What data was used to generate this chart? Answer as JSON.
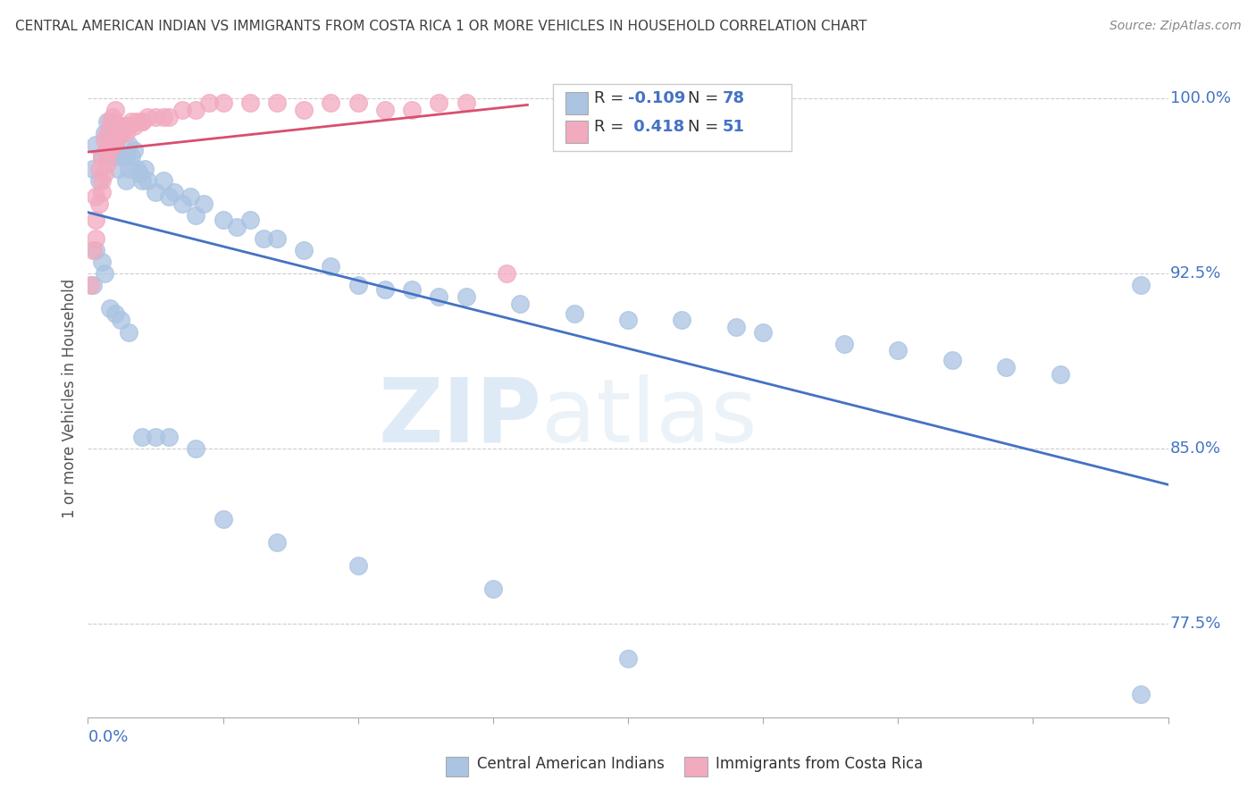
{
  "title": "CENTRAL AMERICAN INDIAN VS IMMIGRANTS FROM COSTA RICA 1 OR MORE VEHICLES IN HOUSEHOLD CORRELATION CHART",
  "source": "Source: ZipAtlas.com",
  "legend_label1": "Central American Indians",
  "legend_label2": "Immigrants from Costa Rica",
  "R1": -0.109,
  "N1": 78,
  "R2": 0.418,
  "N2": 51,
  "watermark_zip": "ZIP",
  "watermark_atlas": "atlas",
  "blue_color": "#aac4e2",
  "pink_color": "#f2aabf",
  "blue_line_color": "#4472c4",
  "pink_line_color": "#d94f6e",
  "title_color": "#404040",
  "axis_label_color": "#4472c4",
  "background_color": "#ffffff",
  "xlim": [
    0.0,
    0.4
  ],
  "ylim": [
    0.735,
    1.008
  ],
  "blue_x": [
    0.002,
    0.003,
    0.004,
    0.005,
    0.006,
    0.007,
    0.007,
    0.008,
    0.009,
    0.009,
    0.01,
    0.011,
    0.011,
    0.012,
    0.012,
    0.013,
    0.013,
    0.014,
    0.014,
    0.015,
    0.015,
    0.016,
    0.017,
    0.018,
    0.019,
    0.02,
    0.021,
    0.022,
    0.025,
    0.028,
    0.03,
    0.032,
    0.035,
    0.038,
    0.04,
    0.043,
    0.05,
    0.055,
    0.06,
    0.065,
    0.07,
    0.08,
    0.09,
    0.1,
    0.11,
    0.12,
    0.13,
    0.14,
    0.16,
    0.18,
    0.2,
    0.22,
    0.24,
    0.25,
    0.28,
    0.3,
    0.32,
    0.34,
    0.36,
    0.39,
    0.002,
    0.003,
    0.005,
    0.006,
    0.008,
    0.01,
    0.012,
    0.015,
    0.02,
    0.025,
    0.03,
    0.04,
    0.05,
    0.07,
    0.1,
    0.15,
    0.2,
    0.39
  ],
  "blue_y": [
    0.97,
    0.98,
    0.965,
    0.975,
    0.985,
    0.99,
    0.975,
    0.985,
    0.975,
    0.99,
    0.98,
    0.97,
    0.985,
    0.975,
    0.988,
    0.975,
    0.988,
    0.975,
    0.965,
    0.97,
    0.98,
    0.975,
    0.978,
    0.97,
    0.968,
    0.965,
    0.97,
    0.965,
    0.96,
    0.965,
    0.958,
    0.96,
    0.955,
    0.958,
    0.95,
    0.955,
    0.948,
    0.945,
    0.948,
    0.94,
    0.94,
    0.935,
    0.928,
    0.92,
    0.918,
    0.918,
    0.915,
    0.915,
    0.912,
    0.908,
    0.905,
    0.905,
    0.902,
    0.9,
    0.895,
    0.892,
    0.888,
    0.885,
    0.882,
    0.92,
    0.92,
    0.935,
    0.93,
    0.925,
    0.91,
    0.908,
    0.905,
    0.9,
    0.855,
    0.855,
    0.855,
    0.85,
    0.82,
    0.81,
    0.8,
    0.79,
    0.76,
    0.745
  ],
  "pink_x": [
    0.001,
    0.002,
    0.003,
    0.003,
    0.004,
    0.004,
    0.005,
    0.005,
    0.006,
    0.006,
    0.007,
    0.007,
    0.008,
    0.008,
    0.009,
    0.009,
    0.01,
    0.01,
    0.011,
    0.012,
    0.013,
    0.014,
    0.015,
    0.016,
    0.017,
    0.018,
    0.02,
    0.022,
    0.025,
    0.028,
    0.03,
    0.035,
    0.04,
    0.045,
    0.05,
    0.06,
    0.07,
    0.08,
    0.09,
    0.1,
    0.11,
    0.12,
    0.13,
    0.14,
    0.155,
    0.003,
    0.005,
    0.007,
    0.01,
    0.015,
    0.02
  ],
  "pink_y": [
    0.92,
    0.935,
    0.94,
    0.958,
    0.955,
    0.97,
    0.96,
    0.975,
    0.968,
    0.982,
    0.972,
    0.985,
    0.978,
    0.99,
    0.98,
    0.992,
    0.982,
    0.995,
    0.988,
    0.985,
    0.988,
    0.985,
    0.988,
    0.99,
    0.988,
    0.99,
    0.99,
    0.992,
    0.992,
    0.992,
    0.992,
    0.995,
    0.995,
    0.998,
    0.998,
    0.998,
    0.998,
    0.995,
    0.998,
    0.998,
    0.995,
    0.995,
    0.998,
    0.998,
    0.925,
    0.948,
    0.965,
    0.978,
    0.982,
    0.988,
    0.99
  ]
}
